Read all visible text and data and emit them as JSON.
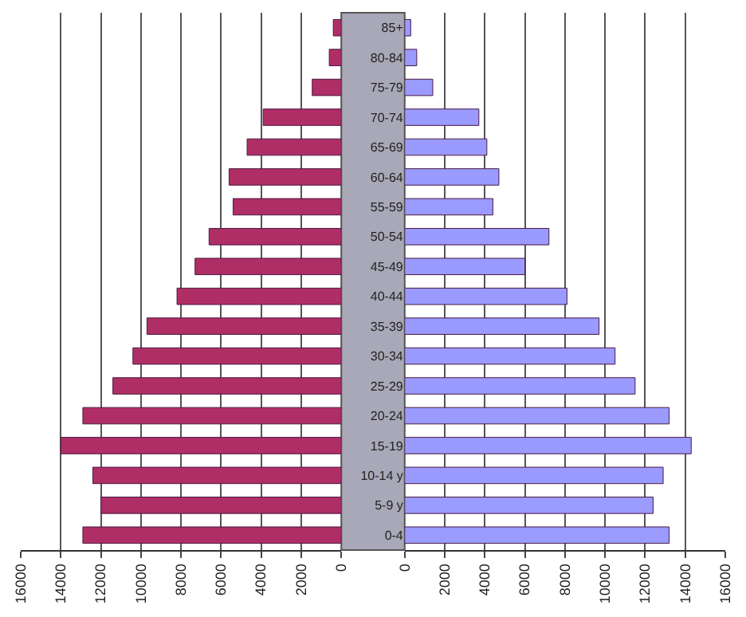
{
  "chart_data": [
    {
      "type": "bar",
      "orientation": "horizontal",
      "categories": [
        null,
        null,
        null,
        null,
        null,
        null,
        null,
        null,
        null,
        null,
        null,
        null,
        null,
        null,
        null,
        null,
        null,
        null
      ],
      "values": [
        400,
        600,
        1450,
        3900,
        4700,
        5600,
        5400,
        6600,
        7300,
        8200,
        9700,
        10400,
        11400,
        12900,
        14000,
        12400,
        12000,
        12900
      ],
      "color": "#b02e66",
      "xlim": [
        16000,
        0
      ],
      "xticks": [
        16000,
        14000,
        12000,
        10000,
        8000,
        6000,
        4000,
        2000,
        0
      ],
      "grid": "x",
      "tick_labels": "x"
    },
    {
      "type": "bar",
      "orientation": "horizontal",
      "categories": [
        "85+",
        "80-84",
        "75-79",
        "70-74",
        "65-69",
        "60-64",
        "55-59",
        "50-54",
        "45-49",
        "40-44",
        "35-39",
        "30-34",
        "25-29",
        "20-24",
        "15-19",
        "10-14 y",
        "5-9 y",
        "0-4"
      ],
      "values": [
        300,
        600,
        1400,
        3700,
        4100,
        4700,
        4400,
        7200,
        6000,
        8100,
        9700,
        10500,
        11500,
        13200,
        14300,
        12900,
        12400,
        13200
      ],
      "color": "#9a9aff",
      "xlim": [
        0,
        16000
      ],
      "xticks": [
        0,
        2000,
        4000,
        6000,
        8000,
        10000,
        12000,
        14000,
        16000
      ],
      "grid": "x"
    }
  ]
}
